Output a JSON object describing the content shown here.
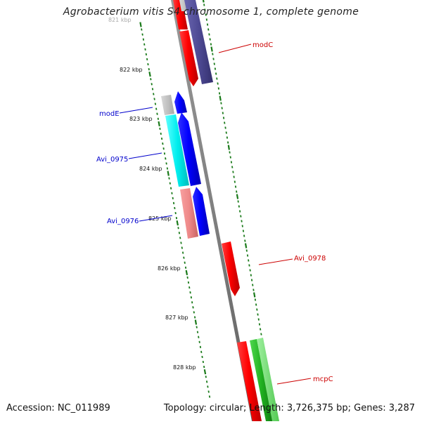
{
  "title": "Agrobacterium vitis S4 chromosome 1, complete genome",
  "ticks": [
    {
      "label": "821 kbp"
    },
    {
      "label": "822 kbp"
    },
    {
      "label": "823 kbp"
    },
    {
      "label": "824 kbp"
    },
    {
      "label": "825 kbp"
    },
    {
      "label": "826 kbp"
    },
    {
      "label": "827 kbp"
    },
    {
      "label": "828 kbp"
    }
  ],
  "genes": [
    {
      "name": "modC",
      "color": "#cc0000"
    },
    {
      "name": "modE",
      "color": "#0000cc"
    },
    {
      "name": "Avi_0975",
      "color": "#0000cc"
    },
    {
      "name": "Avi_0976",
      "color": "#0000cc"
    },
    {
      "name": "Avi_0978",
      "color": "#cc0000"
    },
    {
      "name": "mcpC",
      "color": "#cc0000"
    }
  ],
  "footer": {
    "accession": "Accession: NC_011989",
    "summary": "Topology: circular; Length: 3,726,375 bp; Genes: 3,287"
  }
}
